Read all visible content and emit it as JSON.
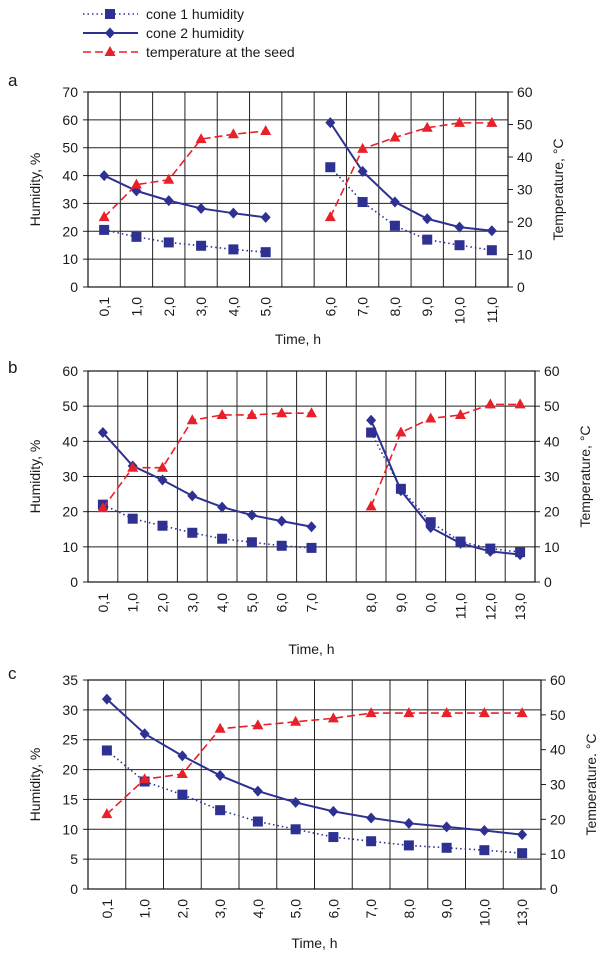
{
  "legend": {
    "items": [
      {
        "label": "cone 1 humidity",
        "color": "#2e3192",
        "dash": "dotted",
        "marker": "square"
      },
      {
        "label": "cone 2 humidity",
        "color": "#2e3192",
        "dash": "solid",
        "marker": "diamond"
      },
      {
        "label": "temperature at the seed",
        "color": "#e8202a",
        "dash": "dashed",
        "marker": "triangle"
      }
    ]
  },
  "chart_data": [
    {
      "type": "line",
      "panel_label": "a",
      "categories": [
        "0,1",
        "1,0",
        "2,0",
        "3,0",
        "4,0",
        "5,0",
        "",
        "6,0",
        "7,0",
        "8,0",
        "9,0",
        "10,0",
        "11,0"
      ],
      "xlabel": "Time, h",
      "ylabel": "Humidity, %",
      "ylabel_right": "Temperature, °C",
      "ylim": [
        0,
        70
      ],
      "y_ticks": [
        "0",
        "10",
        "20",
        "30",
        "40",
        "50",
        "60",
        "70"
      ],
      "ylim_right": [
        0,
        60
      ],
      "y_ticks_right": [
        "0",
        "10",
        "20",
        "30",
        "40",
        "50",
        "60"
      ],
      "grid": true,
      "series": [
        {
          "name": "cone 1 humidity",
          "axis": "left",
          "values": [
            20.5,
            18,
            16,
            14.8,
            13.5,
            12.5,
            null,
            43,
            30.5,
            22,
            17,
            15,
            13.2
          ]
        },
        {
          "name": "cone 2 humidity",
          "axis": "left",
          "values": [
            40,
            34.5,
            31,
            28.2,
            26.5,
            25,
            null,
            59,
            41.5,
            30.5,
            24.5,
            21.5,
            20.2
          ]
        },
        {
          "name": "temperature at the seed",
          "axis": "right",
          "values": [
            21.5,
            31.5,
            33,
            45.5,
            47,
            48,
            null,
            21.5,
            42.5,
            46,
            49,
            50.5,
            50.5
          ]
        }
      ]
    },
    {
      "type": "line",
      "panel_label": "b",
      "categories": [
        "0,1",
        "1,0",
        "2,0",
        "3,0",
        "4,0",
        "5,0",
        "6,0",
        "7,0",
        "",
        "8,0",
        "9,0",
        "0,0",
        "11,0",
        "12,0",
        "13,0"
      ],
      "xlabel": "Time, h",
      "ylabel": "Humidity, %",
      "ylabel_right": "Temperature, °C",
      "ylim": [
        0,
        60
      ],
      "y_ticks": [
        "0",
        "10",
        "20",
        "30",
        "40",
        "50",
        "60"
      ],
      "ylim_right": [
        0,
        60
      ],
      "y_ticks_right": [
        "0",
        "10",
        "20",
        "30",
        "40",
        "50",
        "60"
      ],
      "grid": true,
      "series": [
        {
          "name": "cone 1 humidity",
          "axis": "left",
          "values": [
            22,
            18,
            16,
            14,
            12.3,
            11.3,
            10.3,
            9.7,
            null,
            42.5,
            26.5,
            17,
            11.5,
            9.5,
            8.5
          ]
        },
        {
          "name": "cone 2 humidity",
          "axis": "left",
          "values": [
            42.5,
            33,
            29,
            24.5,
            21.3,
            19,
            17.3,
            15.7,
            null,
            46,
            26,
            15.5,
            11,
            8.7,
            7.8
          ]
        },
        {
          "name": "temperature at the seed",
          "axis": "right",
          "values": [
            21,
            32.5,
            32.5,
            46,
            47.5,
            47.5,
            48,
            48,
            null,
            21.5,
            42.5,
            46.5,
            47.5,
            50.5,
            50.5
          ]
        }
      ]
    },
    {
      "type": "line",
      "panel_label": "c",
      "categories": [
        "0,1",
        "1,0",
        "2,0",
        "3,0",
        "4,0",
        "5,0",
        "6,0",
        "7,0",
        "8,0",
        "9,0",
        "10,0",
        "13,0"
      ],
      "xlabel": "Time, h",
      "ylabel": "Humidity, %",
      "ylabel_right": "Temperature, °C",
      "ylim": [
        0,
        35
      ],
      "y_ticks": [
        "0",
        "5",
        "10",
        "15",
        "20",
        "25",
        "30",
        "35"
      ],
      "ylim_right": [
        0,
        60
      ],
      "y_ticks_right": [
        "0",
        "10",
        "20",
        "30",
        "40",
        "50",
        "60"
      ],
      "grid": true,
      "series": [
        {
          "name": "cone 1 humidity",
          "axis": "left",
          "values": [
            23.2,
            18,
            15.8,
            13.2,
            11.3,
            10,
            8.7,
            8,
            7.3,
            6.9,
            6.5,
            6
          ]
        },
        {
          "name": "cone 2 humidity",
          "axis": "left",
          "values": [
            31.8,
            26,
            22.3,
            19,
            16.4,
            14.5,
            13,
            11.9,
            11,
            10.4,
            9.8,
            9.1
          ]
        },
        {
          "name": "temperature at the seed",
          "axis": "right",
          "values": [
            21.5,
            31.5,
            33,
            46,
            47,
            48,
            49,
            50.5,
            50.5,
            50.5,
            50.5,
            50.5
          ]
        }
      ]
    }
  ]
}
